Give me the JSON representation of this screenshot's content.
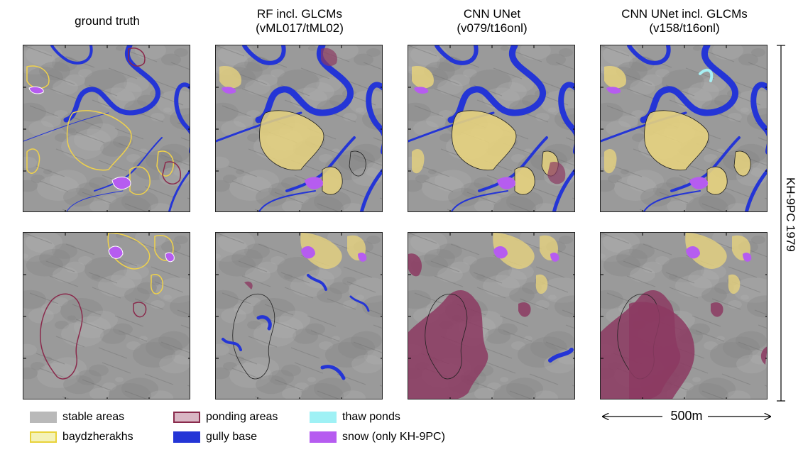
{
  "columns": [
    {
      "title_line1": "ground truth",
      "title_line2": ""
    },
    {
      "title_line1": "RF incl. GLCMs",
      "title_line2": "(vML017/tML02)"
    },
    {
      "title_line1": "CNN UNet",
      "title_line2": "(v079/t16onl)"
    },
    {
      "title_line1": "CNN UNet incl. GLCMs",
      "title_line2": "(v158/t16onl)"
    }
  ],
  "row_label": "KH-9PC 1979",
  "scale_label": "500m",
  "legend": [
    {
      "label": "stable areas",
      "fill": "#b9b9b9",
      "stroke": "#b9b9b9"
    },
    {
      "label": "baydzherakhs",
      "fill": "#f4f2b8",
      "stroke": "#e8d23a"
    },
    {
      "label": "ponding areas",
      "fill": "#d9b6c4",
      "stroke": "#8a2a4c"
    },
    {
      "label": "gully base",
      "fill": "#2435d6",
      "stroke": "#2435d6"
    },
    {
      "label": "thaw ponds",
      "fill": "#9ff1f5",
      "stroke": "#9ff1f5"
    },
    {
      "label": "snow (only KH-9PC)",
      "fill": "#b65cf0",
      "stroke": "#b65cf0"
    }
  ],
  "colors": {
    "imagery": "#9a9a9a",
    "baydzherakh_pred": "#e6d27e",
    "ponding_pred": "#8c3a62",
    "gully": "#2435d6",
    "thaw": "#a6f0f4",
    "snow": "#b65cf0",
    "outline_gt_bay": "#f0d24a",
    "outline_gt_pond": "#8a2a4c"
  }
}
